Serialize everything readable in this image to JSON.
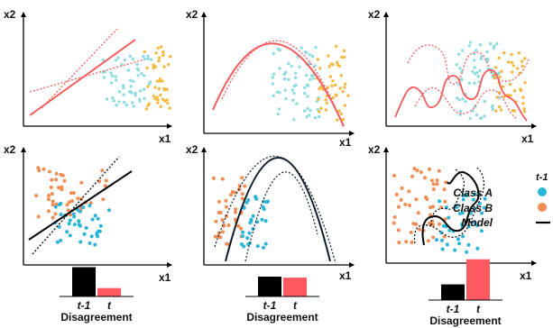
{
  "axis": {
    "x_label": "x1",
    "y_label": "x2"
  },
  "bar_charts": [
    {
      "bars": [
        {
          "label": "t-1",
          "value": 0.56,
          "color": "#000000"
        },
        {
          "label": "t",
          "value": 0.16,
          "color": "#ff5a5f"
        }
      ],
      "xlabel": "Disagreement"
    },
    {
      "bars": [
        {
          "label": "t-1",
          "value": 0.38,
          "color": "#000000"
        },
        {
          "label": "t",
          "value": 0.36,
          "color": "#ff5a5f"
        }
      ],
      "xlabel": "Disagreement"
    },
    {
      "bars": [
        {
          "label": "t-1",
          "value": 0.3,
          "color": "#000000"
        },
        {
          "label": "t",
          "value": 0.78,
          "color": "#ff5a5f"
        }
      ],
      "xlabel": "Disagreement"
    }
  ],
  "legend": {
    "header": "t-1",
    "items": [
      {
        "label": "Class A",
        "color": "#29b5d9",
        "symbol": "dot"
      },
      {
        "label": "Class B",
        "color": "#f28c52",
        "symbol": "dot"
      },
      {
        "label": "Model",
        "color": "#000000",
        "symbol": "line"
      }
    ]
  },
  "colors": {
    "class_a_top": "#8fdce0",
    "class_b_top": "#f5b942",
    "class_a_bottom": "#29b5d9",
    "class_b_bottom": "#f28c52",
    "model_t": "#f25c5c",
    "model_t1": "#0d1b2a"
  }
}
